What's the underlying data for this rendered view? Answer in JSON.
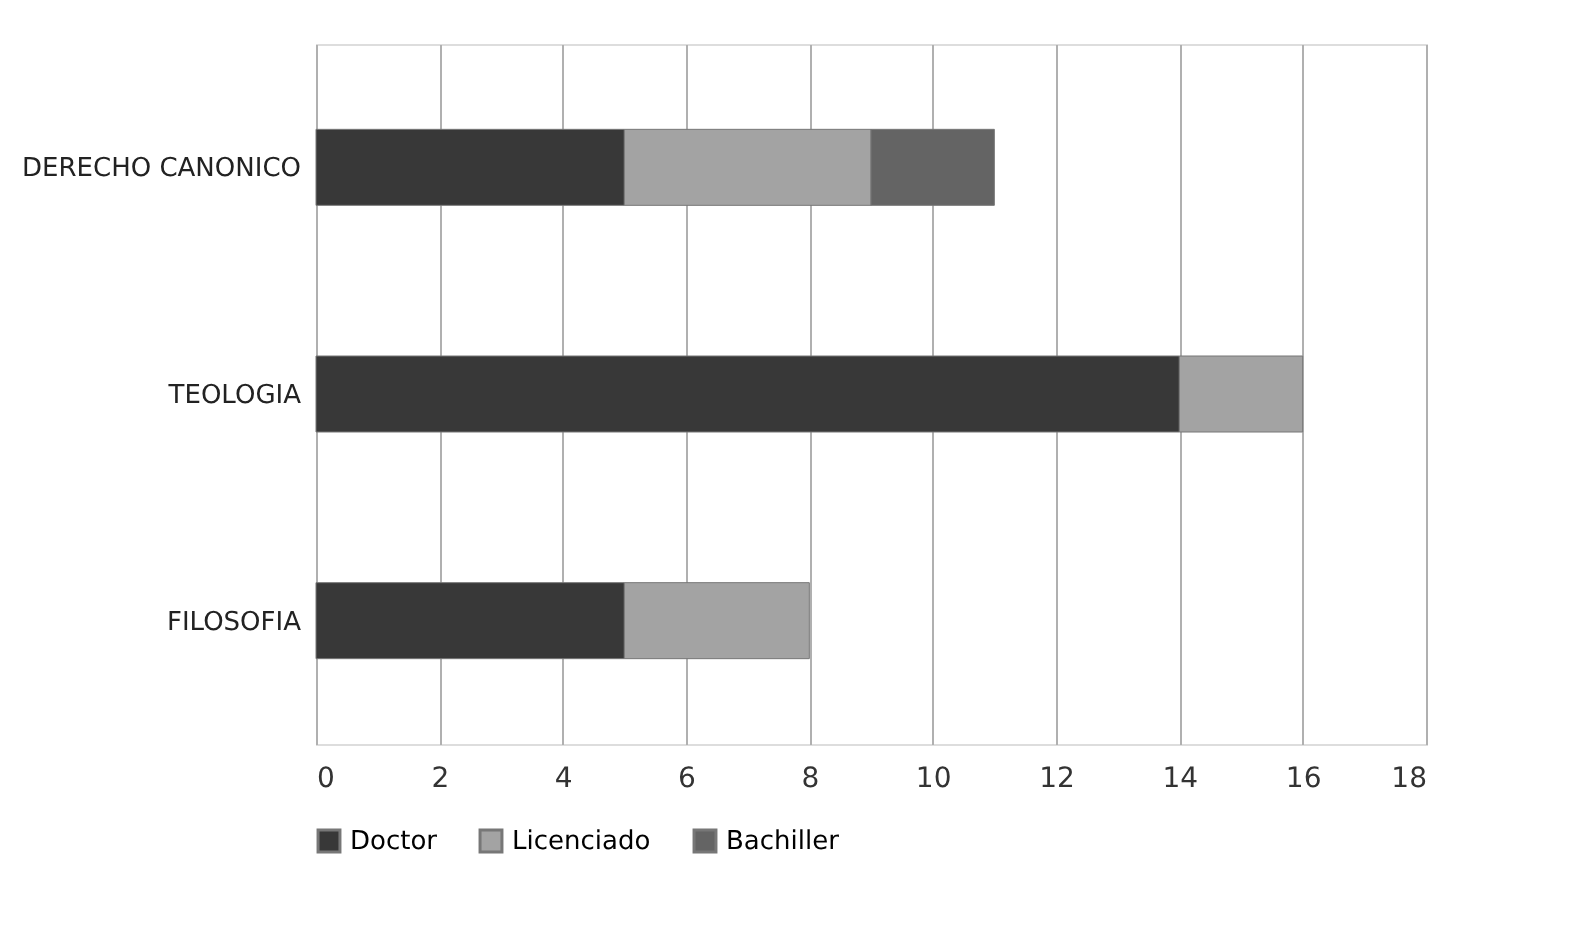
{
  "chart_data": {
    "type": "bar",
    "orientation": "horizontal",
    "stacked": true,
    "categories": [
      "DERECHO CANONICO",
      "TEOLOGIA",
      "FILOSOFIA"
    ],
    "series": [
      {
        "name": "Doctor",
        "color": "#383838",
        "values": [
          5,
          14,
          5
        ]
      },
      {
        "name": "Licenciado",
        "color": "#a3a3a3",
        "values": [
          4,
          2,
          3
        ]
      },
      {
        "name": "Bachiller",
        "color": "#646464",
        "values": [
          2,
          null,
          null
        ]
      }
    ],
    "xlim": [
      0,
      18
    ],
    "xticks": [
      0,
      2,
      4,
      6,
      8,
      10,
      12,
      14,
      16,
      18
    ],
    "grid": "x",
    "legend": "bottom"
  }
}
